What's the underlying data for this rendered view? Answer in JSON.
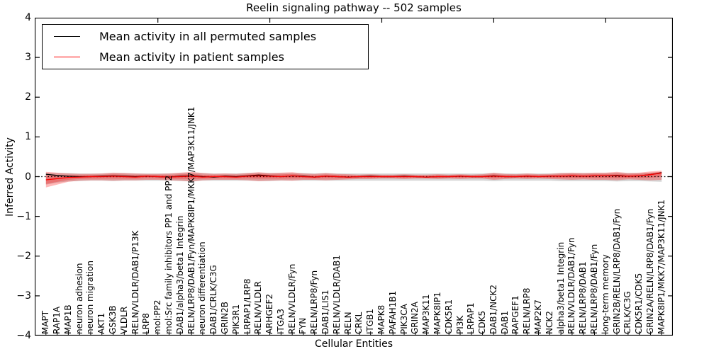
{
  "title": "Reelin signaling pathway -- 502 samples",
  "axes": {
    "ylabel": "Inferred Activity",
    "xlabel": "Cellular Entities",
    "ytick_labels": [
      "4",
      "3",
      "2",
      "1",
      "0",
      "−1",
      "−2",
      "−3",
      "−4"
    ],
    "ytick_values": [
      4,
      3,
      2,
      1,
      0,
      -1,
      -2,
      -3,
      -4
    ],
    "ylim": [
      -4,
      4
    ]
  },
  "legend": {
    "entries": [
      {
        "label": "Mean activity in all permuted samples",
        "color": "#000000"
      },
      {
        "label": "Mean activity in patient samples",
        "color": "#ff0000"
      }
    ]
  },
  "colors": {
    "permuted_line": "#000000",
    "patient_line": "#ff0000",
    "patient_fill": "#ff0000",
    "patient_fill_alpha": 0.28,
    "patient_inner_alpha": 0.25,
    "permuted_fill": "#888888",
    "permuted_fill_alpha": 0.35,
    "zero_line": "#000000"
  },
  "chart_data": {
    "type": "line",
    "title": "Reelin signaling pathway -- 502 samples",
    "xlabel": "Cellular Entities",
    "ylabel": "Inferred Activity",
    "ylim": [
      -4,
      4
    ],
    "grid": false,
    "legend_position": "upper left",
    "categories": [
      "MAPT",
      "RAP1A",
      "MAP1B",
      "neuron adhesion",
      "neuron migration",
      "AKT1",
      "GSK3B",
      "VLDLR",
      "RELN/VLDLR/DAB1/P13K",
      "LRP8",
      "mol:PP2",
      "mol:Src family inhibitors PP1 and PP2",
      "DAB1/alpha3/beta1 Integrin",
      "RELN/LRP8/DAB1/Fyn/MAPK8IP1/MKK7/MAP3K11/JNK1",
      "neuron differentiation",
      "DAB1/CRLK/C3G",
      "GRIN2B",
      "PIK3R1",
      "LRPAP1/LRP8",
      "RELN/VLDLR",
      "ARHGEF2",
      "ITGA3",
      "RELN/VLDLR/Fyn",
      "FYN",
      "RELN/LRP8/Fyn",
      "DAB1/LIS1",
      "RELN/VLDLR/DAB1",
      "RELN",
      "CRKL",
      "ITGB1",
      "MAPK8",
      "PAFAH1B1",
      "PIK3CA",
      "GRIN2A",
      "MAP3K11",
      "MAPK8IP1",
      "CDK5R1",
      "PI3K",
      "LRPAP1",
      "CDK5",
      "DAB1/NCK2",
      "DAB1",
      "RAPGEF1",
      "RELN/LRP8",
      "MAP2K7",
      "NCK2",
      "alpha3/beta1 Integrin",
      "RELN/VLDLR/DAB1/Fyn",
      "RELN/LRP8/DAB1",
      "RELN/LRP8/DAB1/Fyn",
      "long-term memory",
      "GRIN2B/RELN/LRP8/DAB1/Fyn",
      "CRLK/C3G",
      "CDK5R1/CDK5",
      "GRIN2A/RELN/LRP8/DAB1/Fyn",
      "MAPK8IP1/MKK7/MAP3K11/JNK1"
    ],
    "series": [
      {
        "name": "Mean activity in all permuted samples",
        "values": [
          0.06,
          0.03,
          0.01,
          0.0,
          0.0,
          0.01,
          0.02,
          0.01,
          0.0,
          0.01,
          0.0,
          -0.01,
          0.01,
          0.02,
          0.0,
          -0.01,
          0.01,
          0.0,
          0.02,
          0.04,
          0.02,
          0.0,
          0.02,
          0.01,
          -0.01,
          0.01,
          0.0,
          -0.01,
          0.0,
          0.01,
          0.0,
          0.0,
          0.01,
          0.0,
          -0.01,
          0.0,
          0.0,
          0.01,
          0.0,
          0.0,
          0.02,
          0.0,
          0.0,
          0.01,
          0.0,
          0.01,
          0.01,
          0.02,
          0.01,
          0.02,
          0.02,
          0.03,
          0.01,
          0.02,
          0.05,
          0.1
        ]
      },
      {
        "name": "Mean activity in patient samples",
        "values": [
          -0.08,
          -0.05,
          -0.02,
          -0.01,
          0.0,
          0.0,
          0.01,
          0.0,
          -0.01,
          0.01,
          0.0,
          -0.01,
          0.0,
          0.01,
          -0.01,
          0.0,
          0.0,
          -0.01,
          0.01,
          0.02,
          0.01,
          0.0,
          0.02,
          0.0,
          -0.01,
          0.01,
          0.0,
          -0.01,
          0.0,
          0.0,
          0.0,
          0.0,
          0.0,
          0.0,
          -0.01,
          0.0,
          0.0,
          0.01,
          0.0,
          0.0,
          0.01,
          0.0,
          0.0,
          0.01,
          0.0,
          0.01,
          0.01,
          0.02,
          0.01,
          0.02,
          0.02,
          0.02,
          0.01,
          0.02,
          0.05,
          0.09
        ]
      },
      {
        "name": "patient band upper",
        "values": [
          0.12,
          0.1,
          0.08,
          0.07,
          0.07,
          0.08,
          0.1,
          0.09,
          0.08,
          0.07,
          0.07,
          0.08,
          0.1,
          0.12,
          0.09,
          0.07,
          0.08,
          0.07,
          0.09,
          0.11,
          0.09,
          0.1,
          0.11,
          0.08,
          0.07,
          0.09,
          0.07,
          0.06,
          0.05,
          0.06,
          0.05,
          0.05,
          0.06,
          0.05,
          0.05,
          0.06,
          0.05,
          0.06,
          0.05,
          0.06,
          0.1,
          0.07,
          0.06,
          0.08,
          0.06,
          0.07,
          0.09,
          0.1,
          0.09,
          0.1,
          0.1,
          0.12,
          0.09,
          0.1,
          0.13,
          0.15
        ]
      },
      {
        "name": "patient band lower",
        "values": [
          -0.27,
          -0.2,
          -0.13,
          -0.1,
          -0.09,
          -0.09,
          -0.1,
          -0.09,
          -0.09,
          -0.08,
          -0.08,
          -0.09,
          -0.1,
          -0.12,
          -0.09,
          -0.08,
          -0.08,
          -0.08,
          -0.09,
          -0.11,
          -0.1,
          -0.09,
          -0.1,
          -0.08,
          -0.08,
          -0.09,
          -0.08,
          -0.07,
          -0.06,
          -0.06,
          -0.05,
          -0.05,
          -0.06,
          -0.05,
          -0.05,
          -0.06,
          -0.05,
          -0.06,
          -0.05,
          -0.05,
          -0.08,
          -0.06,
          -0.05,
          -0.06,
          -0.05,
          -0.06,
          -0.07,
          -0.08,
          -0.07,
          -0.08,
          -0.08,
          -0.09,
          -0.07,
          -0.08,
          -0.09,
          -0.08
        ]
      },
      {
        "name": "permuted band upper",
        "values": [
          0.1,
          0.09,
          0.09,
          0.08,
          0.08,
          0.08,
          0.09,
          0.09,
          0.08,
          0.08,
          0.08,
          0.08,
          0.09,
          0.1,
          0.09,
          0.08,
          0.08,
          0.08,
          0.09,
          0.1,
          0.09,
          0.09,
          0.09,
          0.09,
          0.08,
          0.09,
          0.08,
          0.08,
          0.08,
          0.08,
          0.08,
          0.08,
          0.08,
          0.08,
          0.08,
          0.08,
          0.08,
          0.08,
          0.08,
          0.08,
          0.09,
          0.08,
          0.08,
          0.08,
          0.08,
          0.08,
          0.09,
          0.09,
          0.09,
          0.09,
          0.09,
          0.1,
          0.09,
          0.09,
          0.1,
          0.11
        ]
      },
      {
        "name": "permuted band lower",
        "values": [
          -0.2,
          -0.15,
          -0.12,
          -0.11,
          -0.1,
          -0.1,
          -0.11,
          -0.1,
          -0.1,
          -0.1,
          -0.1,
          -0.1,
          -0.11,
          -0.12,
          -0.1,
          -0.1,
          -0.1,
          -0.1,
          -0.1,
          -0.11,
          -0.11,
          -0.1,
          -0.1,
          -0.1,
          -0.1,
          -0.1,
          -0.1,
          -0.1,
          -0.1,
          -0.1,
          -0.1,
          -0.1,
          -0.1,
          -0.1,
          -0.1,
          -0.1,
          -0.1,
          -0.1,
          -0.1,
          -0.1,
          -0.11,
          -0.1,
          -0.1,
          -0.1,
          -0.1,
          -0.1,
          -0.11,
          -0.11,
          -0.11,
          -0.11,
          -0.11,
          -0.12,
          -0.11,
          -0.11,
          -0.12,
          -0.13
        ]
      }
    ],
    "inner_band_scale": 0.55
  }
}
